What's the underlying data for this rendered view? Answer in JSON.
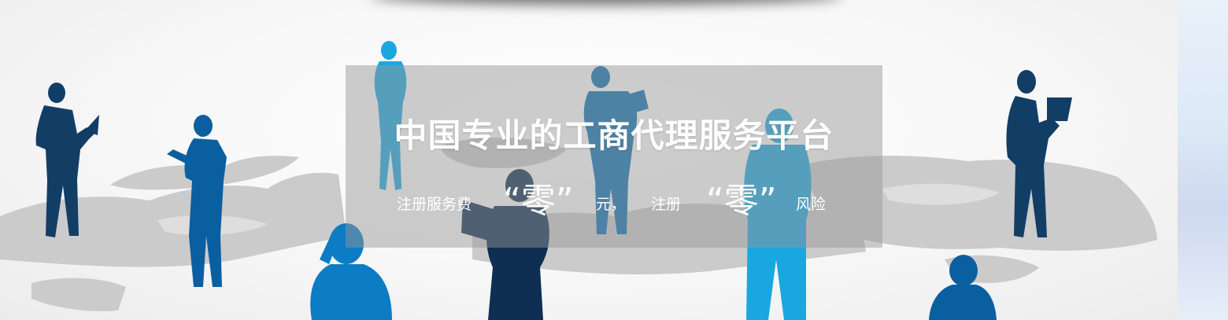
{
  "hero": {
    "headline": "中国专业的工商代理服务平台",
    "slogan": {
      "part1": "注册服务费",
      "zero1": "“零”",
      "part2": "元，",
      "part3": "注册",
      "zero2": "“零”",
      "part4": "风险"
    }
  },
  "colors": {
    "navy": "#0e3a63",
    "blue": "#0a6fb3",
    "light_blue": "#1aa7e0",
    "map_grey": "#c9c9c9"
  }
}
